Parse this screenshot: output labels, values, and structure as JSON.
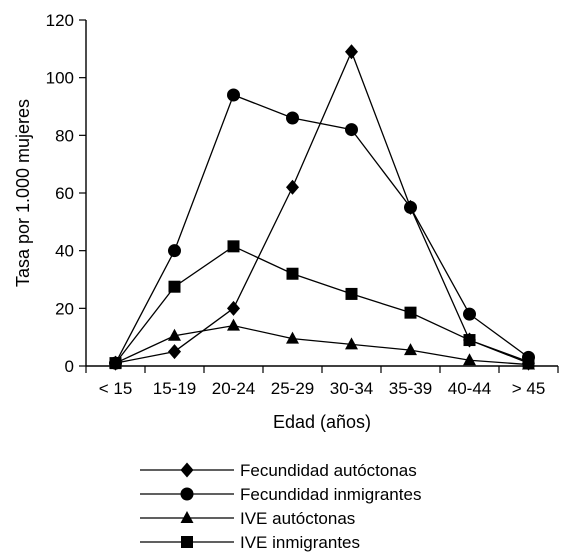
{
  "chart_data": {
    "type": "line",
    "xlabel": "Edad (años)",
    "ylabel": "Tasa por 1.000 mujeres",
    "categories": [
      "< 15",
      "15-19",
      "20-24",
      "25-29",
      "30-34",
      "35-39",
      "40-44",
      "> 45"
    ],
    "ylim": [
      0,
      120
    ],
    "yticks": [
      0,
      20,
      40,
      60,
      80,
      100,
      120
    ],
    "grid": false,
    "legend_position": "bottom",
    "series": [
      {
        "name": "Fecundidad autóctonas",
        "marker": "diamond",
        "values": [
          1,
          5,
          20,
          62,
          109,
          55,
          9,
          1
        ]
      },
      {
        "name": "Fecundidad inmigrantes",
        "marker": "circle",
        "values": [
          1,
          40,
          94,
          86,
          82,
          55,
          18,
          3
        ]
      },
      {
        "name": "IVE autóctonas",
        "marker": "triangle",
        "values": [
          1,
          10.5,
          14,
          9.5,
          7.5,
          5.5,
          2,
          0.5
        ]
      },
      {
        "name": "IVE inmigrantes",
        "marker": "square",
        "values": [
          1,
          27.5,
          41.5,
          32,
          25,
          18.5,
          9,
          1.5
        ]
      }
    ],
    "color": "#000000"
  }
}
